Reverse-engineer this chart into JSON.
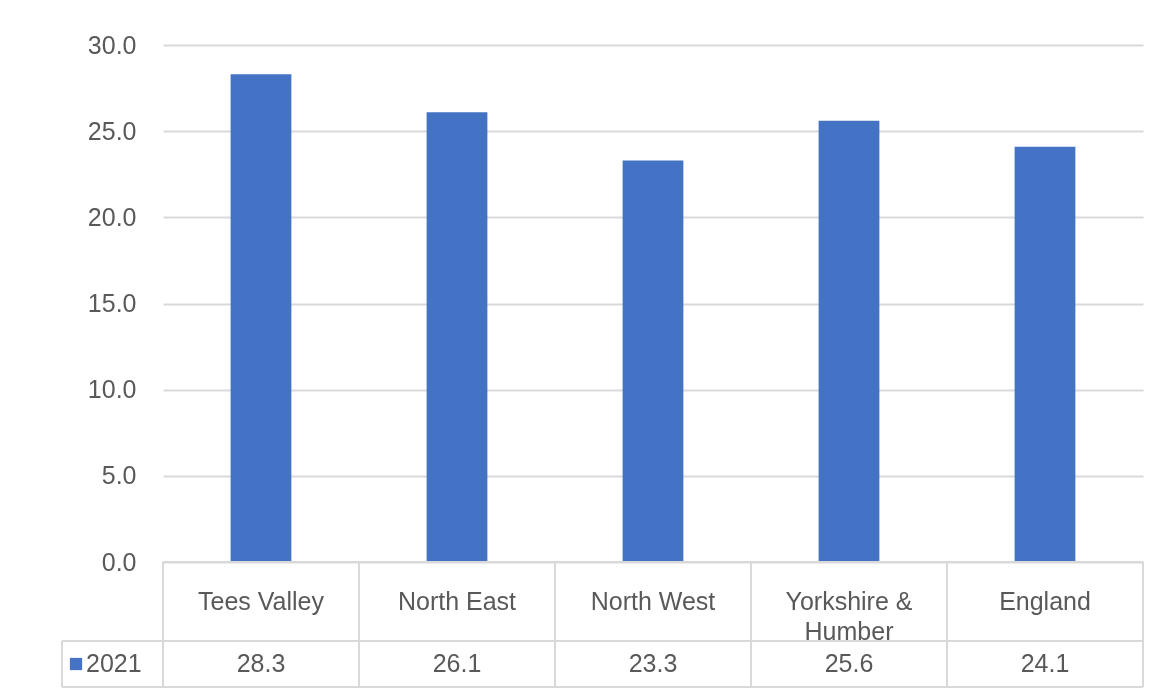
{
  "chart_data": {
    "type": "bar",
    "categories": [
      "Tees Valley",
      "North East",
      "North West",
      "Yorkshire & Humber",
      "England"
    ],
    "series": [
      {
        "name": "2021",
        "color": "#4472c4",
        "values": [
          28.3,
          26.1,
          23.3,
          25.6,
          24.1
        ]
      }
    ],
    "ylim": [
      0,
      30
    ],
    "yticks": [
      {
        "value": 0,
        "label": "0.0"
      },
      {
        "value": 5,
        "label": "5.0"
      },
      {
        "value": 10,
        "label": "10.0"
      },
      {
        "value": 15,
        "label": "15.0"
      },
      {
        "value": 20,
        "label": "20.0"
      },
      {
        "value": 25,
        "label": "25.0"
      },
      {
        "value": 30,
        "label": "30.0"
      }
    ],
    "grid": "y",
    "data_labels": true,
    "legend": "bottom left"
  }
}
